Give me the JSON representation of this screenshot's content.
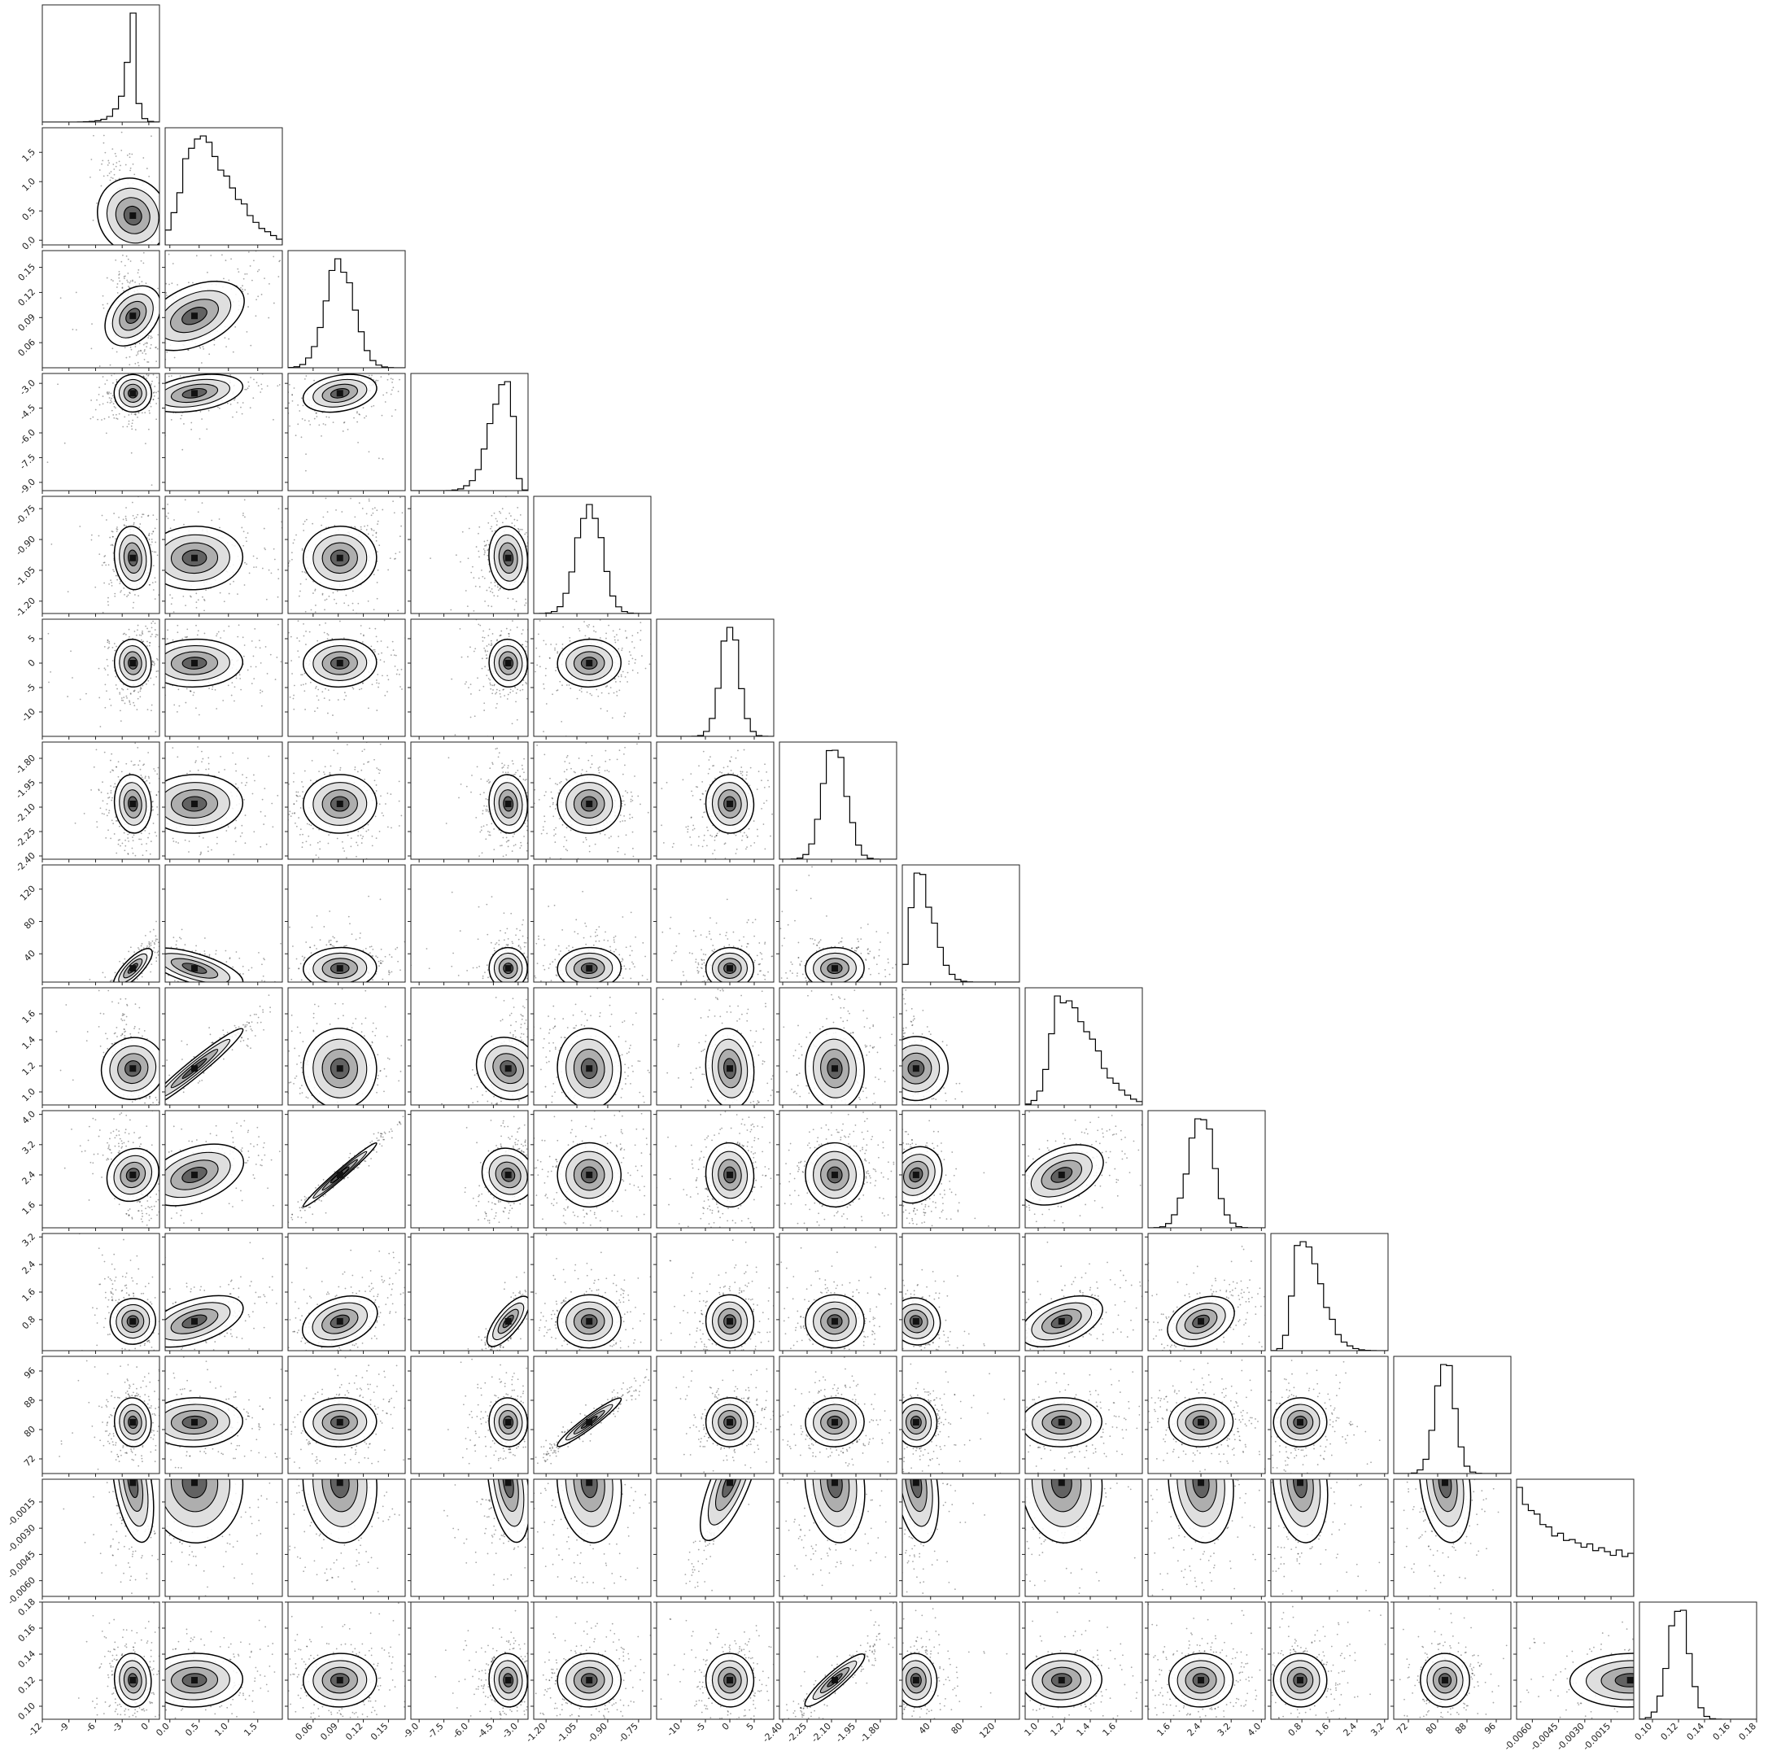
{
  "chart_data": {
    "type": "corner",
    "n_params": 14,
    "parameters": [
      {
        "ticks": [
          "-12",
          "-9",
          "-6",
          "-3",
          "0"
        ],
        "range": [
          -12,
          1.2
        ],
        "peak": -1.8,
        "width": 0.8,
        "hist": "peaked"
      },
      {
        "ticks": [
          "0.0",
          "0.5",
          "1.0",
          "1.5"
        ],
        "range": [
          -0.08,
          1.92
        ],
        "peak": 0.42,
        "width": 0.32,
        "hist": "skew"
      },
      {
        "ticks": [
          "0.06",
          "0.09",
          "0.12",
          "0.15"
        ],
        "range": [
          0.03,
          0.17
        ],
        "peak": 0.092,
        "width": 0.017,
        "hist": "normal"
      },
      {
        "ticks": [
          "-9.0",
          "-7.5",
          "-6.0",
          "-4.5",
          "-3.0"
        ],
        "range": [
          -9.5,
          -2.4
        ],
        "peak": -3.6,
        "width": 0.45,
        "hist": "leftskew"
      },
      {
        "ticks": [
          "-1.20",
          "-1.05",
          "-0.90",
          "-0.75"
        ],
        "range": [
          -1.26,
          -0.69
        ],
        "peak": -0.99,
        "width": 0.06,
        "hist": "normal"
      },
      {
        "ticks": [
          "-10",
          "-5",
          "0",
          "5"
        ],
        "range": [
          -15,
          9
        ],
        "peak": 0,
        "width": 1.9,
        "hist": "normal"
      },
      {
        "ticks": [
          "-2.40",
          "-2.25",
          "-2.10",
          "-1.95",
          "-1.80"
        ],
        "range": [
          -2.42,
          -1.7
        ],
        "peak": -2.08,
        "width": 0.07,
        "hist": "normal"
      },
      {
        "ticks": [
          "40",
          "80",
          "120"
        ],
        "range": [
          5,
          150
        ],
        "peak": 22,
        "width": 10,
        "hist": "skew"
      },
      {
        "ticks": [
          "1.0",
          "1.2",
          "1.4",
          "1.6"
        ],
        "range": [
          0.9,
          1.8
        ],
        "peak": 1.18,
        "width": 0.12,
        "hist": "skew"
      },
      {
        "ticks": [
          "1.6",
          "2.4",
          "3.2",
          "4.0"
        ],
        "range": [
          1.0,
          4.1
        ],
        "peak": 2.4,
        "width": 0.33,
        "hist": "normal"
      },
      {
        "ticks": [
          "0.8",
          "1.6",
          "2.4",
          "3.2"
        ],
        "range": [
          -0.1,
          3.3
        ],
        "peak": 0.75,
        "width": 0.3,
        "hist": "skew"
      },
      {
        "ticks": [
          "72",
          "80",
          "88",
          "96"
        ],
        "range": [
          68,
          100
        ],
        "peak": 82,
        "width": 2.6,
        "hist": "normal"
      },
      {
        "ticks": [
          "-0.0060",
          "-0.0045",
          "-0.0030",
          "-0.0015"
        ],
        "range": [
          -0.0069,
          -0.0002
        ],
        "peak": -0.0004,
        "width": 0.002,
        "hist": "decay"
      },
      {
        "ticks": [
          "0.10",
          "0.12",
          "0.14",
          "0.16",
          "0.18"
        ],
        "range": [
          0.09,
          0.18
        ],
        "peak": 0.12,
        "width": 0.008,
        "hist": "normal"
      }
    ],
    "xlabel": "",
    "ylabel": "",
    "title": ""
  },
  "colors": {
    "ink": "#000000",
    "frame": "#222222",
    "background": "#ffffff"
  }
}
